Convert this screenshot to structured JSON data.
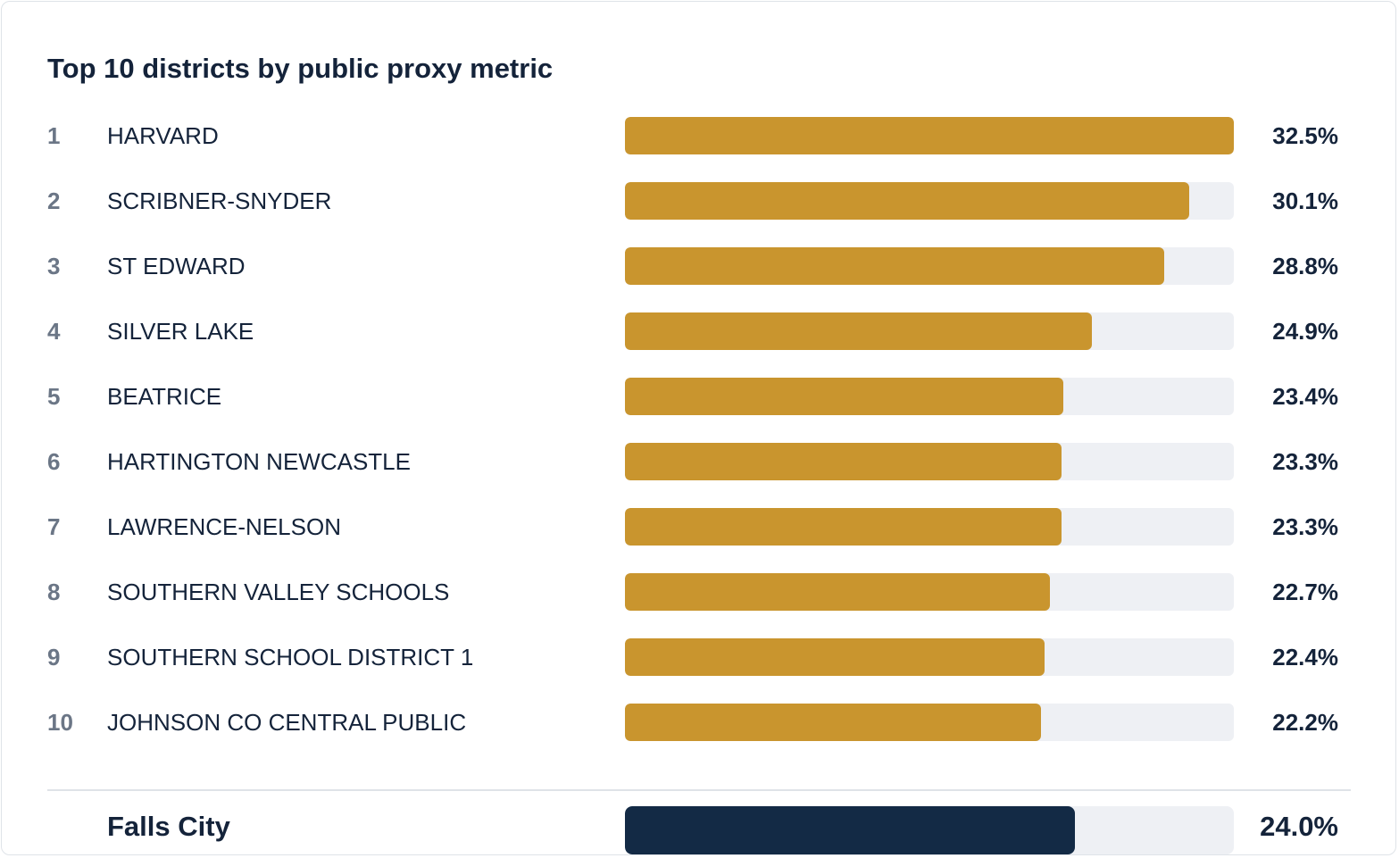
{
  "chart_data": {
    "type": "bar",
    "title": "Top 10 districts by public proxy metric",
    "orientation": "horizontal",
    "xlim": [
      0,
      32.5
    ],
    "unit": "%",
    "grid": false,
    "ranks": [
      "1",
      "2",
      "3",
      "4",
      "5",
      "6",
      "7",
      "8",
      "9",
      "10"
    ],
    "categories": [
      "HARVARD",
      "SCRIBNER-SNYDER",
      "ST EDWARD",
      "SILVER LAKE",
      "BEATRICE",
      "HARTINGTON NEWCASTLE",
      "LAWRENCE-NELSON",
      "SOUTHERN VALLEY SCHOOLS",
      "SOUTHERN SCHOOL DISTRICT 1",
      "JOHNSON CO CENTRAL PUBLIC"
    ],
    "values": [
      32.5,
      30.1,
      28.8,
      24.9,
      23.4,
      23.3,
      23.3,
      22.7,
      22.4,
      22.2
    ],
    "labels": [
      "32.5%",
      "30.1%",
      "28.8%",
      "24.9%",
      "23.4%",
      "23.3%",
      "23.3%",
      "22.7%",
      "22.4%",
      "22.2%"
    ],
    "reference": {
      "name": "Falls City",
      "value": 24.0,
      "label": "24.0%"
    },
    "colors": {
      "bar": "#c9952e",
      "reference_bar": "#132a45",
      "track": "#eef0f4"
    }
  }
}
